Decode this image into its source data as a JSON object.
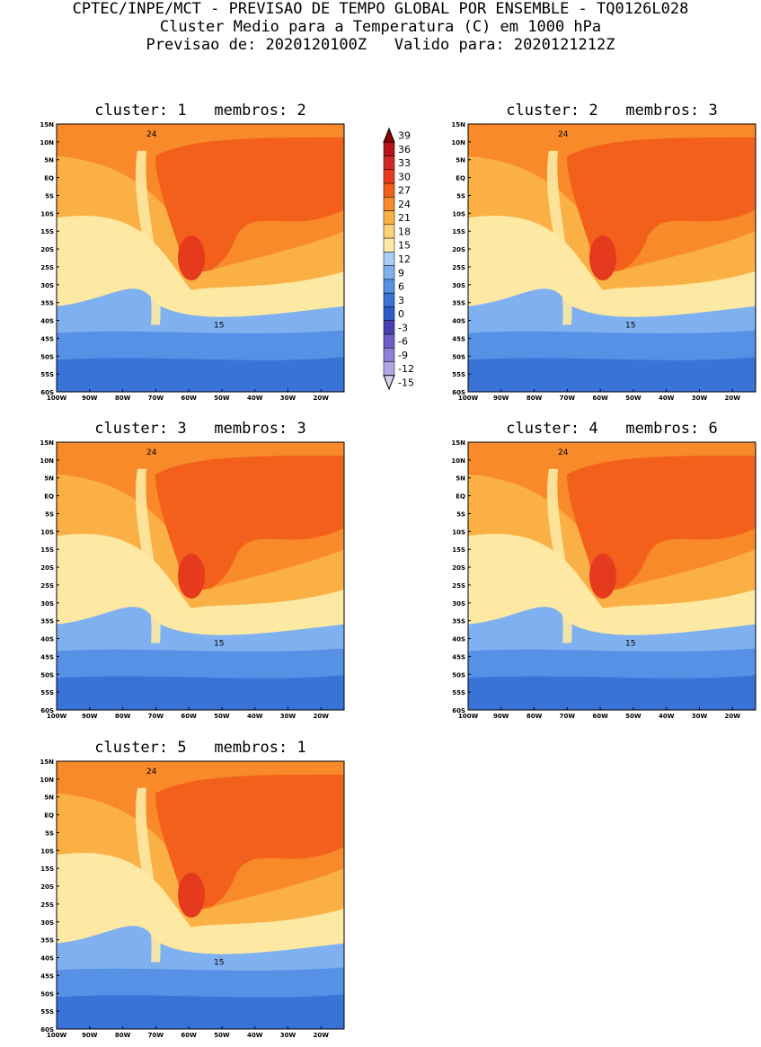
{
  "header": {
    "line1": "CPTEC/INPE/MCT - PREVISAO DE TEMPO GLOBAL POR ENSEMBLE - TQ0126L028",
    "line2": "Cluster Medio para a Temperatura (C) em 1000 hPa",
    "line3": "Previsao de: 2020120100Z   Valido para: 2020121212Z"
  },
  "axes": {
    "lat_labels": [
      "15N",
      "10N",
      "5N",
      "EQ",
      "5S",
      "10S",
      "15S",
      "20S",
      "25S",
      "30S",
      "35S",
      "40S",
      "45S",
      "50S",
      "55S",
      "60S"
    ],
    "lon_labels": [
      "100W",
      "90W",
      "80W",
      "70W",
      "60W",
      "50W",
      "40W",
      "30W",
      "20W"
    ]
  },
  "colorbar": {
    "labels": [
      "39",
      "36",
      "33",
      "30",
      "27",
      "24",
      "21",
      "18",
      "15",
      "12",
      "9",
      "6",
      "3",
      "0",
      "-3",
      "-6",
      "-9",
      "-12",
      "-15"
    ],
    "colors": [
      "#8b0000",
      "#b5121b",
      "#d02828",
      "#e63a1f",
      "#f2601b",
      "#f88a2a",
      "#fbb046",
      "#fdd17a",
      "#fde9a3",
      "#a9cdf5",
      "#7fb0ef",
      "#5791e6",
      "#3a73d8",
      "#2c5bc6",
      "#4a3fb5",
      "#6e5cc8",
      "#8f7fd6",
      "#b3a6e4",
      "#d6cff1"
    ]
  },
  "panels": [
    {
      "cluster_label": "cluster:",
      "cluster": "1",
      "members_label": "membros:",
      "members": "2"
    },
    {
      "cluster_label": "cluster:",
      "cluster": "2",
      "members_label": "membros:",
      "members": "3"
    },
    {
      "cluster_label": "cluster:",
      "cluster": "3",
      "members_label": "membros:",
      "members": "3"
    },
    {
      "cluster_label": "cluster:",
      "cluster": "4",
      "members_label": "membros:",
      "members": "6"
    },
    {
      "cluster_label": "cluster:",
      "cluster": "5",
      "members_label": "membros:",
      "members": "1"
    }
  ],
  "contour_labels": {
    "c24": "24",
    "c15": "15"
  }
}
